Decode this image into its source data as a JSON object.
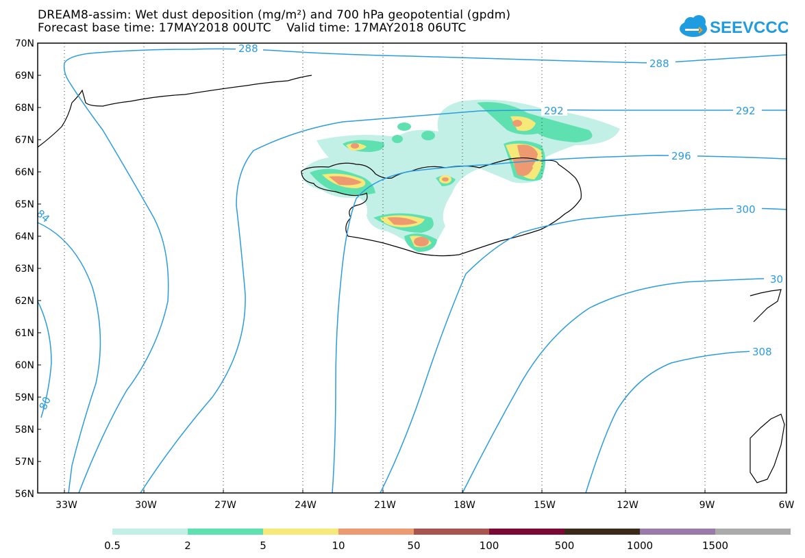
{
  "header": {
    "title_line1": "DREAM8-assim: Wet dust deposition (mg/m²) and 700 hPa geopotential (gpdm)",
    "title_line2": "Forecast base time: 17MAY2018 00UTC    Valid time: 17MAY2018 06UTC"
  },
  "logo": {
    "text": "SEEVCCC",
    "color": "#1f9be0"
  },
  "map": {
    "lat_labels": [
      "70N",
      "69N",
      "68N",
      "67N",
      "66N",
      "65N",
      "64N",
      "63N",
      "62N",
      "61N",
      "60N",
      "59N",
      "58N",
      "57N",
      "56N"
    ],
    "lon_labels": [
      "33W",
      "30W",
      "27W",
      "24W",
      "21W",
      "18W",
      "15W",
      "12W",
      "9W",
      "6W"
    ],
    "contour_color": "#2a9be0",
    "contour_labels": [
      "288",
      "288",
      "292",
      "292",
      "296",
      "300",
      "30",
      "308",
      "84",
      "80"
    ]
  },
  "legend": {
    "colors": [
      "#c2f0e6",
      "#5fe0b0",
      "#f7e87a",
      "#ee9a70",
      "#a85550",
      "#7a0a35",
      "#3b2a1a",
      "#9a7aa8",
      "#aaaaaa"
    ],
    "labels": [
      "0.5",
      "2",
      "5",
      "10",
      "50",
      "100",
      "500",
      "1000",
      "1500"
    ]
  }
}
